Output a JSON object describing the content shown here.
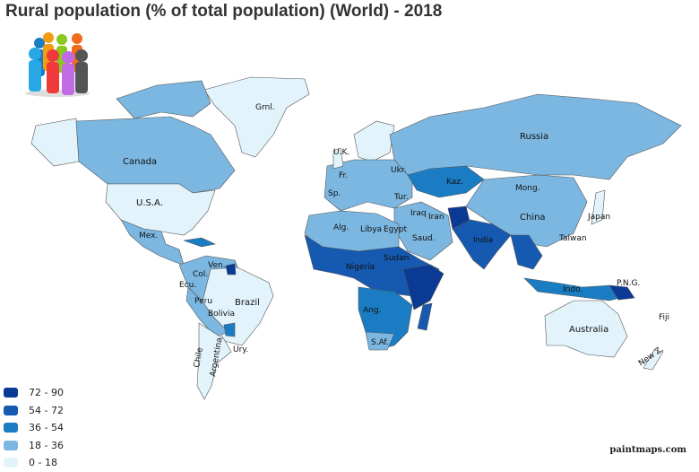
{
  "title": "Rural population (% of total population) (World) - 2018",
  "credit": "paintmaps.com",
  "legend": [
    {
      "label": "72 - 90",
      "color": "#0b3a94"
    },
    {
      "label": "54 - 72",
      "color": "#1559b0"
    },
    {
      "label": "36 - 54",
      "color": "#1a7cc3"
    },
    {
      "label": "18 - 36",
      "color": "#7bb7e1"
    },
    {
      "label": "0 - 18",
      "color": "#e2f3fc"
    }
  ],
  "labels": {
    "grnl": "Grnl.",
    "canada": "Canada",
    "usa": "U.S.A.",
    "mex": "Mex.",
    "ven": "Ven.",
    "col": "Col.",
    "ecu": "Ecu.",
    "peru": "Peru",
    "bolivia": "Bolivia",
    "brazil": "Brazil",
    "chile": "Chile",
    "argentina": "Argentina",
    "ury": "Ury.",
    "russia": "Russia",
    "kaz": "Kaz.",
    "mong": "Mong.",
    "china": "China",
    "japan": "Japan",
    "india": "India",
    "iran": "Iran",
    "saud": "Saud.",
    "alg": "Alg.",
    "libya": "Libya",
    "egypt": "Egypt",
    "sudan": "Sudan",
    "ang": "Ang.",
    "safr": "S.Af.",
    "indo": "Indo.",
    "australia": "Australia",
    "png": "P.N.G.",
    "fiji": "Fiji",
    "nz": "New Z.",
    "uk": "U.K.",
    "fr": "Fr.",
    "sp": "Sp.",
    "tur": "Tur.",
    "ukr": "Ukr.",
    "irq": "Iraq",
    "nigeria": "Nigeria",
    "taiwan": "Taiwan"
  }
}
